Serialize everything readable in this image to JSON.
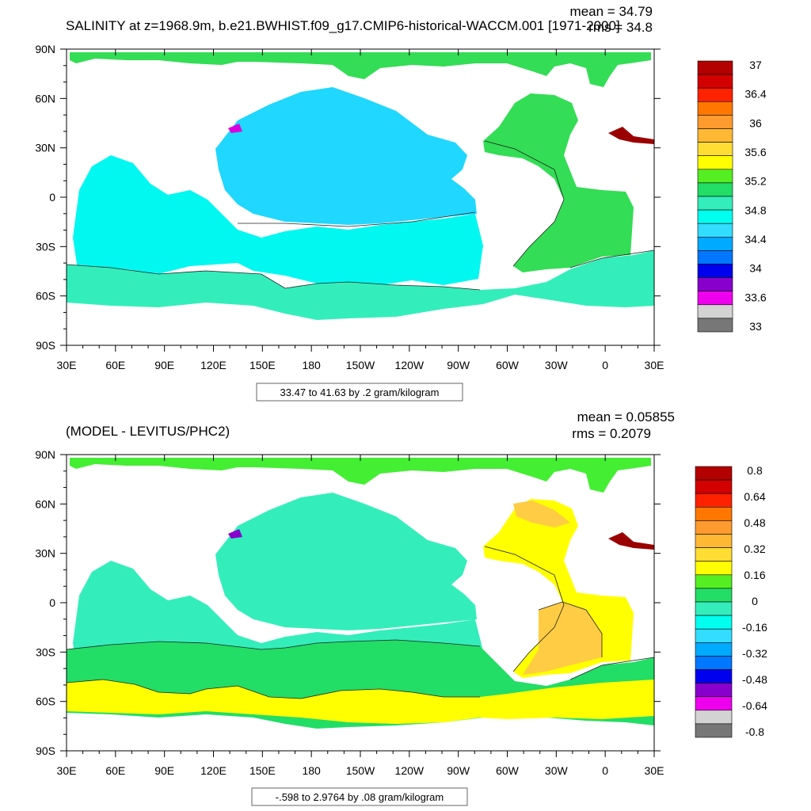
{
  "panels": [
    {
      "title": "SALINITY at z=1968.9m, b.e21.BWHIST.f09_g17.CMIP6-historical-WACCM.001 [1971-2000]",
      "mean_label": "mean = 34.79",
      "rms_label": "rms = 34.8",
      "info_label": "33.47 to 41.63 by .2 gram/kilogram",
      "colorbar": {
        "labels": [
          "37",
          "36.4",
          "36",
          "35.6",
          "35.2",
          "34.8",
          "34.4",
          "34",
          "33.6",
          "33"
        ],
        "colors": [
          "#b30000",
          "#d40000",
          "#ff2200",
          "#ff7700",
          "#ff9a2e",
          "#ffb833",
          "#ffdd33",
          "#ffff00",
          "#55ee22",
          "#22dd66",
          "#33eebb",
          "#00ffee",
          "#33ddff",
          "#00aaff",
          "#0077ff",
          "#0000ee",
          "#8800cc",
          "#ee00ee",
          "#d3d3d3",
          "#777777"
        ]
      },
      "regions": [
        {
          "name": "pacific",
          "color": "#1fd7ff"
        },
        {
          "name": "indian",
          "color": "#00f8f0"
        },
        {
          "name": "southern-ocean",
          "color": "#33eebb"
        },
        {
          "name": "atlantic",
          "color": "#33dd55"
        },
        {
          "name": "arctic",
          "color": "#33dd55"
        },
        {
          "name": "mediterranean",
          "color": "#9b0000"
        },
        {
          "name": "japan-sea",
          "color": "#dd00dd"
        }
      ]
    },
    {
      "title": "(MODEL - LEVITUS/PHC2)",
      "mean_label": "mean = 0.05855",
      "rms_label": "rms = 0.2079",
      "info_label": "-.598 to 2.9764 by .08 gram/kilogram",
      "colorbar": {
        "labels": [
          "0.8",
          "0.64",
          "0.48",
          "0.32",
          "0.16",
          "0",
          "-0.16",
          "-0.32",
          "-0.48",
          "-0.64",
          "-0.8"
        ],
        "colors": [
          "#b30000",
          "#d40000",
          "#ff2200",
          "#ff7700",
          "#ff9a2e",
          "#ffb833",
          "#ffdd33",
          "#ffff00",
          "#55ee22",
          "#22dd66",
          "#33eebb",
          "#00ffee",
          "#33ddff",
          "#00aaff",
          "#0077ff",
          "#0000ee",
          "#8800cc",
          "#ee00ee",
          "#d3d3d3",
          "#777777"
        ]
      },
      "regions": [
        {
          "name": "pacific",
          "color": "#33eebb"
        },
        {
          "name": "indian",
          "color": "#33eebb"
        },
        {
          "name": "southern-ocean",
          "color": "#22dd66"
        },
        {
          "name": "southern-ocean-band",
          "color": "#ffff00"
        },
        {
          "name": "atlantic",
          "color": "#ffff00"
        },
        {
          "name": "atlantic-high",
          "color": "#ffcc44"
        },
        {
          "name": "arctic",
          "color": "#44ee33"
        },
        {
          "name": "mediterranean",
          "color": "#9b0000"
        },
        {
          "name": "japan-sea",
          "color": "#8800cc"
        }
      ]
    }
  ],
  "axes": {
    "x_ticks": [
      "30E",
      "60E",
      "90E",
      "120E",
      "150E",
      "180",
      "150W",
      "120W",
      "90W",
      "60W",
      "30W",
      "0",
      "30E"
    ],
    "y_ticks": [
      "90N",
      "60N",
      "30N",
      "0",
      "30S",
      "60S",
      "90S"
    ]
  }
}
